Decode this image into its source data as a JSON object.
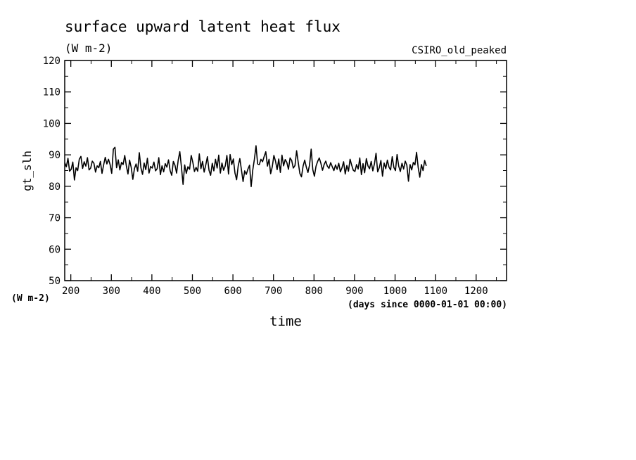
{
  "chart_data": {
    "type": "line",
    "title": "surface upward latent heat flux",
    "units": "(W m-2)",
    "dataset_label": "CSIRO_old_peaked",
    "ylabel": "gt_slh",
    "y_units_label": "(W m-2)",
    "xlabel": "time",
    "x_units_label": "(days since 0000-01-01 00:00)",
    "xlim": [
      185,
      1275
    ],
    "ylim": [
      50,
      120
    ],
    "x_ticks": [
      200,
      300,
      400,
      500,
      600,
      700,
      800,
      900,
      1000,
      1100,
      1200
    ],
    "x_tick_labels": [
      "200",
      "300",
      "400",
      "500",
      "600",
      "700",
      "800",
      "900",
      "1000",
      "1100",
      "1200"
    ],
    "y_ticks": [
      50,
      60,
      70,
      80,
      90,
      100,
      110,
      120
    ],
    "y_tick_labels": [
      "50",
      "60",
      "70",
      "80",
      "90",
      "100",
      "110",
      "120"
    ],
    "grid": false,
    "line_color": "#000000",
    "series": [
      {
        "x_start": 185,
        "x_step": 4,
        "values": [
          87.5,
          86.2,
          88.9,
          84.8,
          85.4,
          87.7,
          82.0,
          85.9,
          85.0,
          88.6,
          89.5,
          85.7,
          87.8,
          86.4,
          89.1,
          85.2,
          85.8,
          88.0,
          87.3,
          84.5,
          86.5,
          85.9,
          87.9,
          84.1,
          86.8,
          89.2,
          87.1,
          88.6,
          86.9,
          84.1,
          91.8,
          92.4,
          85.9,
          88.4,
          85.2,
          87.6,
          86.9,
          89.8,
          86.5,
          83.9,
          88.3,
          86.0,
          82.2,
          85.6,
          87.1,
          84.8,
          90.7,
          85.9,
          83.8,
          87.4,
          85.3,
          88.9,
          84.2,
          86.3,
          85.8,
          87.7,
          84.9,
          85.6,
          89.1,
          83.7,
          86.5,
          84.6,
          87.2,
          86.1,
          88.4,
          85.0,
          83.5,
          87.9,
          86.7,
          84.2,
          88.3,
          91.0,
          86.1,
          80.6,
          86.8,
          84.1,
          86.2,
          85.4,
          89.8,
          87.6,
          84.7,
          86.0,
          84.8,
          90.3,
          85.6,
          87.9,
          84.5,
          86.8,
          89.4,
          85.1,
          83.5,
          87.3,
          84.9,
          88.6,
          85.8,
          89.9,
          84.2,
          87.4,
          85.1,
          86.5,
          89.8,
          83.9,
          90.1,
          86.9,
          88.7,
          84.2,
          82.1,
          86.5,
          88.8,
          85.2,
          81.5,
          84.9,
          83.8,
          85.5,
          86.7,
          79.9,
          85.2,
          88.6,
          92.9,
          87.1,
          86.9,
          88.6,
          87.8,
          89.5,
          91.0,
          86.4,
          88.6,
          84.0,
          86.2,
          89.8,
          88.0,
          85.3,
          88.7,
          84.4,
          89.9,
          86.5,
          88.5,
          87.6,
          85.4,
          89.0,
          88.2,
          85.8,
          86.6,
          91.3,
          87.6,
          84.1,
          83.0,
          86.4,
          88.3,
          86.1,
          84.4,
          86.8,
          91.8,
          85.3,
          83.2,
          86.4,
          87.9,
          89.0,
          87.3,
          85.1,
          86.9,
          88.0,
          86.4,
          85.7,
          87.5,
          86.2,
          85.0,
          86.8,
          85.4,
          87.3,
          84.6,
          85.9,
          87.8,
          83.9,
          86.6,
          84.8,
          88.6,
          86.7,
          85.1,
          84.7,
          86.9,
          85.5,
          89.0,
          83.7,
          87.2,
          84.3,
          88.8,
          86.5,
          85.6,
          87.9,
          84.9,
          87.1,
          90.5,
          84.6,
          85.9,
          88.2,
          83.2,
          87.4,
          85.6,
          88.3,
          86.1,
          85.2,
          89.4,
          86.0,
          85.0,
          90.1,
          86.4,
          84.7,
          87.3,
          85.5,
          88.0,
          86.7,
          81.6,
          86.9,
          85.2,
          87.6,
          86.8,
          90.8,
          86.0,
          82.9,
          86.9,
          85.0,
          88.2,
          86.5
        ]
      }
    ]
  }
}
